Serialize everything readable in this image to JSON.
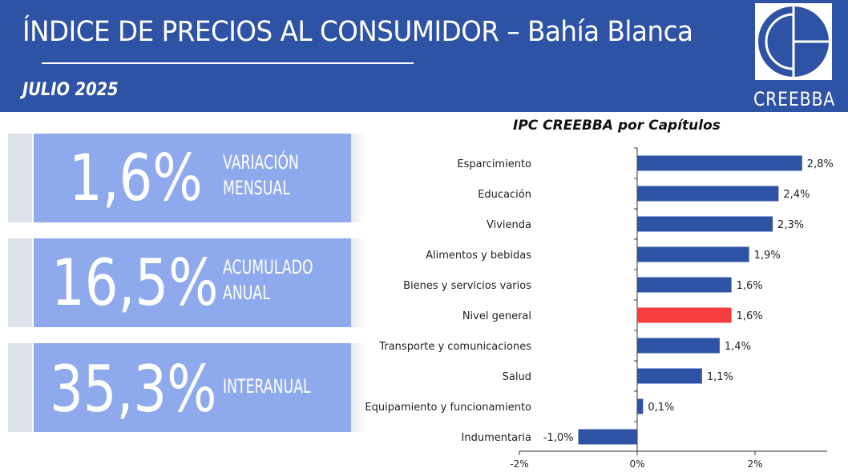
{
  "header": {
    "title": "ÍNDICE DE PRECIOS AL CONSUMIDOR – Bahía Blanca",
    "subtitle": "JULIO 2025",
    "logo_text": "CREEBBA"
  },
  "kpis": [
    {
      "value": "1,6%",
      "label_lines": [
        "VARIACIÓN",
        "MENSUAL"
      ]
    },
    {
      "value": "16,5%",
      "label_lines": [
        "ACUMULADO",
        "ANUAL"
      ]
    },
    {
      "value": "35,3%",
      "label_lines": [
        "INTERANUAL",
        ""
      ]
    }
  ],
  "colors": {
    "header": "#2e53a5",
    "kpi_box": "#8eaaed",
    "bar": "#2e53a5",
    "highlight": "#f53d3d"
  },
  "chart_data": {
    "type": "bar",
    "orientation": "horizontal",
    "title": "IPC CREEBBA por Capítulos",
    "categories": [
      "Esparcimiento",
      "Educación",
      "Vivienda",
      "Alimentos y bebidas",
      "Bienes y servicios varios",
      "Nivel general",
      "Transporte y comunicaciones",
      "Salud",
      "Equipamiento y funcionamiento",
      "Indumentaria"
    ],
    "values": [
      2.8,
      2.4,
      2.3,
      1.9,
      1.6,
      1.6,
      1.4,
      1.1,
      0.1,
      -1.0
    ],
    "value_labels": [
      "2,8%",
      "2,4%",
      "2,3%",
      "1,9%",
      "1,6%",
      "1,6%",
      "1,4%",
      "1,1%",
      "0,1%",
      "-1,0%"
    ],
    "highlight_category": "Nivel general",
    "xlim": [
      -2,
      3
    ],
    "xticks": [
      -2,
      0,
      2
    ],
    "xtick_labels": [
      "-2%",
      "0%",
      "2%"
    ],
    "grid": false
  }
}
